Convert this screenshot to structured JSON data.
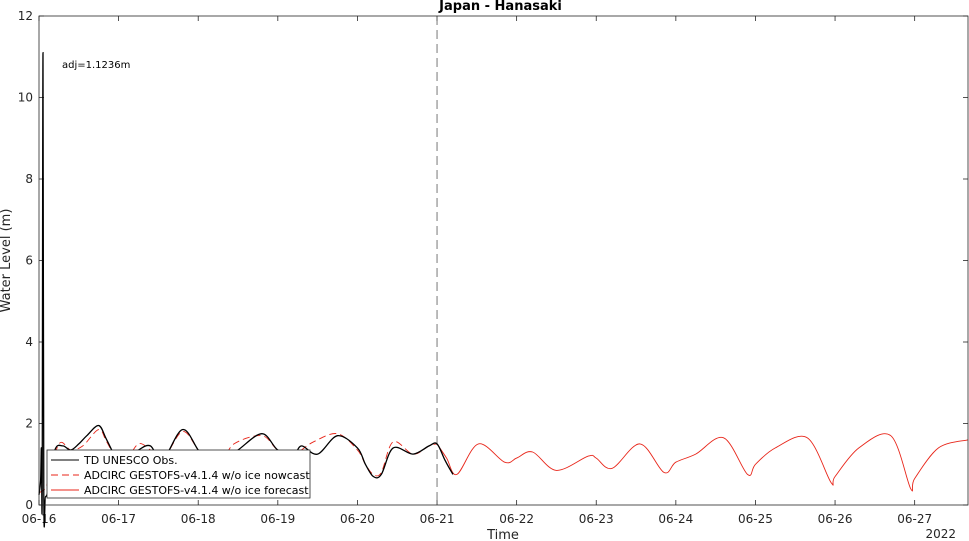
{
  "chart_data": {
    "type": "line",
    "title": "Japan - Hanasaki",
    "xlabel": "Time",
    "ylabel": "Water Level (m)",
    "year_label": "2022",
    "annotation": "adj=1.1236m",
    "xlim": [
      0,
      11.67
    ],
    "ylim": [
      0,
      12
    ],
    "x_ticks": [
      {
        "x": 0,
        "label": "06-16"
      },
      {
        "x": 1,
        "label": "06-17"
      },
      {
        "x": 2,
        "label": "06-18"
      },
      {
        "x": 3,
        "label": "06-19"
      },
      {
        "x": 4,
        "label": "06-20"
      },
      {
        "x": 5,
        "label": "06-21"
      },
      {
        "x": 6,
        "label": "06-22"
      },
      {
        "x": 7,
        "label": "06-23"
      },
      {
        "x": 8,
        "label": "06-24"
      },
      {
        "x": 9,
        "label": "06-25"
      },
      {
        "x": 10,
        "label": "06-26"
      },
      {
        "x": 11,
        "label": "06-27"
      }
    ],
    "y_ticks": [
      {
        "y": 0,
        "label": "0"
      },
      {
        "y": 2,
        "label": "2"
      },
      {
        "y": 4,
        "label": "4"
      },
      {
        "y": 6,
        "label": "6"
      },
      {
        "y": 8,
        "label": "8"
      },
      {
        "y": 10,
        "label": "10"
      },
      {
        "y": 12,
        "label": "12"
      }
    ],
    "forecast_start_x": 5,
    "series": [
      {
        "name": "TD UNESCO Obs.",
        "color": "#000000",
        "style": "solid",
        "x": [
          0.0,
          0.02,
          0.03,
          0.04,
          0.05,
          0.06,
          0.08,
          0.12,
          0.2,
          0.3,
          0.4,
          0.5,
          0.6,
          0.75,
          0.85,
          1.0,
          1.1,
          1.25,
          1.4,
          1.55,
          1.8,
          2.0,
          2.15,
          2.3,
          2.5,
          2.8,
          3.0,
          3.2,
          3.3,
          3.5,
          3.75,
          4.0,
          4.1,
          4.2,
          4.3,
          4.45,
          4.7,
          4.9,
          5.0,
          5.1,
          5.2
        ],
        "y": [
          0.25,
          0.6,
          1.4,
          0.3,
          11.1,
          0.3,
          0.2,
          0.4,
          1.35,
          1.45,
          1.35,
          1.5,
          1.7,
          1.95,
          1.6,
          1.05,
          1.1,
          1.35,
          1.45,
          1.1,
          1.85,
          1.35,
          1.0,
          1.1,
          1.35,
          1.75,
          1.35,
          1.25,
          1.45,
          1.25,
          1.7,
          1.4,
          1.0,
          0.7,
          0.75,
          1.4,
          1.25,
          1.45,
          1.5,
          1.1,
          0.75
        ]
      },
      {
        "name": "ADCIRC GESTOFS-v4.1.4 w/o ice nowcast",
        "color": "#e8261a",
        "style": "dashed",
        "x": [
          0.0,
          0.1,
          0.25,
          0.4,
          0.55,
          0.75,
          0.85,
          1.0,
          1.1,
          1.25,
          1.4,
          1.55,
          1.8,
          2.0,
          2.15,
          2.3,
          2.45,
          2.8,
          3.0,
          3.2,
          3.45,
          3.75,
          4.0,
          4.1,
          4.2,
          4.3,
          4.45,
          4.7,
          4.9,
          5.0
        ],
        "y": [
          0.3,
          0.5,
          1.5,
          1.35,
          1.45,
          1.85,
          1.55,
          1.05,
          1.1,
          1.5,
          1.35,
          1.1,
          1.8,
          1.35,
          1.0,
          1.05,
          1.5,
          1.7,
          1.35,
          1.25,
          1.55,
          1.75,
          1.35,
          1.0,
          0.75,
          0.8,
          1.55,
          1.25,
          1.45,
          1.5
        ]
      },
      {
        "name": "ADCIRC GESTOFS-v4.1.4 w/o ice forecast",
        "color": "#e8261a",
        "style": "solid",
        "x": [
          5.0,
          5.12,
          5.25,
          5.52,
          5.85,
          6.0,
          6.2,
          6.5,
          6.9,
          7.0,
          7.2,
          7.55,
          7.85,
          8.0,
          8.25,
          8.6,
          8.9,
          9.0,
          9.25,
          9.65,
          9.95,
          10.0,
          10.3,
          10.7,
          10.95,
          11.0,
          11.3,
          11.67
        ],
        "y": [
          1.5,
          1.15,
          0.75,
          1.5,
          1.05,
          1.15,
          1.3,
          0.85,
          1.2,
          1.15,
          0.9,
          1.5,
          0.8,
          1.05,
          1.25,
          1.65,
          0.75,
          1.0,
          1.4,
          1.65,
          0.55,
          0.7,
          1.4,
          1.7,
          0.4,
          0.65,
          1.4,
          1.6
        ]
      }
    ]
  }
}
